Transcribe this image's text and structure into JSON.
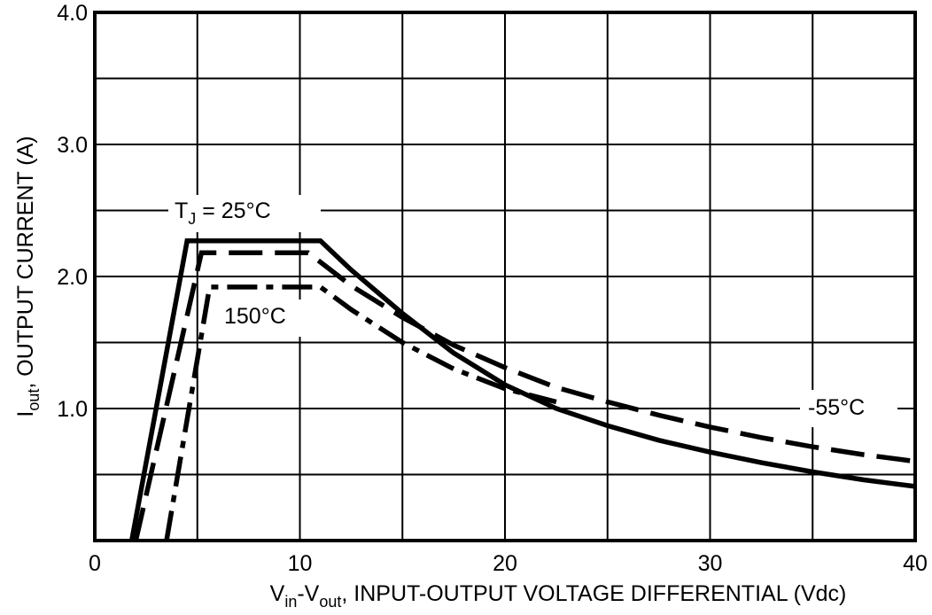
{
  "chart_data": {
    "type": "line",
    "xlabel": {
      "parts": [
        {
          "text": "V",
          "sub": false
        },
        {
          "text": "in",
          "sub": true
        },
        {
          "text": "-V",
          "sub": false
        },
        {
          "text": "out",
          "sub": true
        },
        {
          "text": ", INPUT-OUTPUT VOLTAGE DIFFERENTIAL (Vdc)",
          "sub": false
        }
      ]
    },
    "ylabel": {
      "parts": [
        {
          "text": "I",
          "sub": false
        },
        {
          "text": "out",
          "sub": true
        },
        {
          "text": ", OUTPUT CURRENT (A)",
          "sub": false
        }
      ]
    },
    "xlim": [
      0,
      40
    ],
    "ylim": [
      0,
      4.0
    ],
    "xticks": [
      {
        "value": 0,
        "label": "0"
      },
      {
        "value": 10,
        "label": "10"
      },
      {
        "value": 20,
        "label": "20"
      },
      {
        "value": 30,
        "label": "30"
      },
      {
        "value": 40,
        "label": "40"
      }
    ],
    "yticks": [
      {
        "value": 1.0,
        "label": "1.0"
      },
      {
        "value": 2.0,
        "label": "2.0"
      },
      {
        "value": 3.0,
        "label": "3.0"
      },
      {
        "value": 4.0,
        "label": "4.0"
      }
    ],
    "x_grid_step": 5,
    "y_grid_step": 0.5,
    "grid": true,
    "series": [
      {
        "id": "t25",
        "style": "solid",
        "x": [
          1.8,
          4.5,
          11.0,
          12.5,
          15,
          17.5,
          20,
          22.5,
          25,
          27.5,
          30,
          32.5,
          35,
          37.5,
          40
        ],
        "y": [
          0,
          2.27,
          2.27,
          2.05,
          1.72,
          1.42,
          1.18,
          1.0,
          0.87,
          0.76,
          0.67,
          0.59,
          0.52,
          0.46,
          0.41
        ]
      },
      {
        "id": "tm55",
        "style": "dashed",
        "x": [
          2.0,
          5.2,
          10.4,
          12.5,
          15,
          17.5,
          20,
          22.5,
          25,
          27.5,
          30,
          32.5,
          35,
          37.5,
          40
        ],
        "y": [
          0,
          2.18,
          2.18,
          1.93,
          1.69,
          1.48,
          1.31,
          1.16,
          1.05,
          0.95,
          0.86,
          0.78,
          0.71,
          0.65,
          0.6
        ]
      },
      {
        "id": "t150",
        "style": "dashdot",
        "x": [
          3.5,
          5.6,
          11.0,
          12.5,
          15,
          17.5,
          20,
          22.5
        ],
        "y": [
          0,
          1.92,
          1.92,
          1.75,
          1.5,
          1.3,
          1.15,
          1.05
        ]
      }
    ],
    "annotations": [
      {
        "id": "label-25c",
        "parts": [
          {
            "text": "T",
            "sub": false
          },
          {
            "text": "J",
            "sub": true
          },
          {
            "text": " = 25°C",
            "sub": false
          }
        ]
      },
      {
        "id": "label-150c",
        "parts": [
          {
            "text": "150°C",
            "sub": false
          }
        ]
      },
      {
        "id": "label-m55c",
        "parts": [
          {
            "text": "-55°C",
            "sub": false
          }
        ]
      }
    ]
  }
}
